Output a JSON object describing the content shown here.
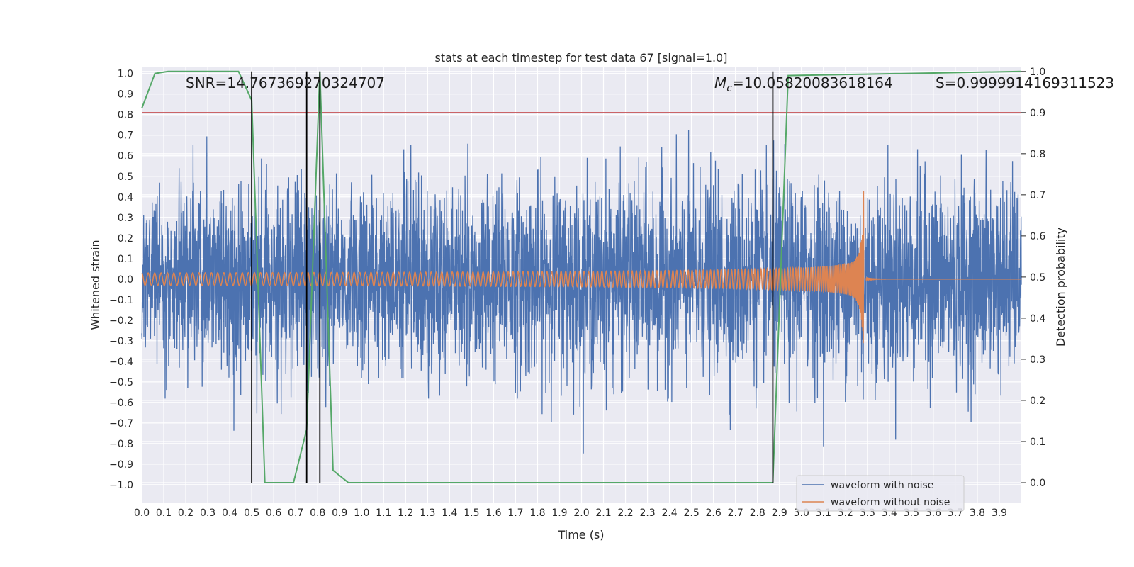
{
  "chart_data": {
    "type": "line",
    "title": "stats at each timestep for test data 67 [signal=1.0]",
    "xlabel": "Time (s)",
    "ylabel_left": "Whitened strain",
    "ylabel_right": "Detection probability",
    "xlim": [
      0.0,
      4.0
    ],
    "ylim_left": [
      -1.09,
      1.03
    ],
    "ylim_right": [
      -0.05,
      1.01
    ],
    "x_ticks": [
      "0.0",
      "0.1",
      "0.2",
      "0.3",
      "0.4",
      "0.5",
      "0.6",
      "0.7",
      "0.8",
      "0.9",
      "1.0",
      "1.1",
      "1.2",
      "1.3",
      "1.4",
      "1.5",
      "1.6",
      "1.7",
      "1.8",
      "1.9",
      "2.0",
      "2.1",
      "2.2",
      "2.3",
      "2.4",
      "2.5",
      "2.6",
      "2.7",
      "2.8",
      "2.9",
      "3.0",
      "3.1",
      "3.2",
      "3.3",
      "3.4",
      "3.5",
      "3.6",
      "3.7",
      "3.8",
      "3.9"
    ],
    "y_ticks_left": [
      "1.0",
      "0.9",
      "0.8",
      "0.7",
      "0.6",
      "0.5",
      "0.4",
      "0.3",
      "0.2",
      "0.1",
      "0.0",
      "−0.1",
      "−0.2",
      "−0.3",
      "−0.4",
      "−0.5",
      "−0.6",
      "−0.7",
      "−0.8",
      "−0.9",
      "−1.0"
    ],
    "y_ticks_right": [
      "1.0",
      "0.9",
      "0.8",
      "0.7",
      "0.6",
      "0.5",
      "0.4",
      "0.3",
      "0.2",
      "0.1",
      "0.0"
    ],
    "annotations": {
      "snr": "SNR=14.767369270324707",
      "mc_symbol": "M",
      "mc_sub": "c",
      "mc_value": "=10.05820083618164",
      "s": "S=0.9999914169311523"
    },
    "threshold": 0.9,
    "vlines": [
      0.5,
      0.75,
      0.81,
      2.87
    ],
    "detection_probability": {
      "x": [
        0.0,
        0.06,
        0.12,
        0.44,
        0.5,
        0.56,
        0.69,
        0.75,
        0.81,
        0.87,
        0.94,
        2.87,
        2.94,
        4.0
      ],
      "y": [
        0.91,
        0.995,
        1.0,
        1.0,
        0.93,
        0.0,
        0.0,
        0.13,
        1.0,
        0.03,
        0.0,
        0.0,
        0.99,
        1.0
      ]
    },
    "series": [
      {
        "name": "waveform with noise",
        "color": "#4c72b0",
        "noise_amplitude": 0.55,
        "peak_abs": 0.93
      },
      {
        "name": "waveform without noise",
        "color": "#dd8452",
        "start_amplitude": 0.03,
        "merger_time": 3.285,
        "peak_amplitude": 0.43
      },
      {
        "name": "detection probability",
        "color": "#55a868"
      }
    ],
    "legend": {
      "position": "lower-right",
      "items": [
        "waveform with noise",
        "waveform without noise"
      ]
    },
    "colors": {
      "background": "#eaeaf2",
      "grid": "#ffffff",
      "threshold": "#c44e52",
      "vline": "#000000"
    }
  }
}
